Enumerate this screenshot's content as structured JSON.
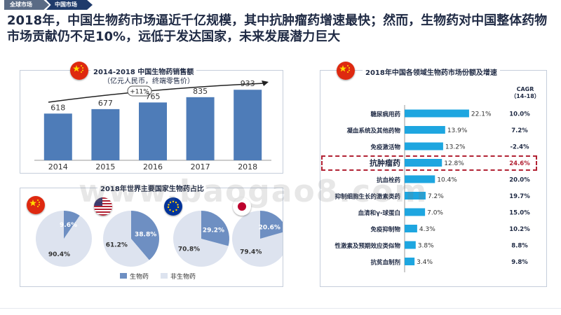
{
  "tabs": [
    "全球市场",
    "中国市场"
  ],
  "headline": "2018年，中国生物药市场逼近千亿规模，其中抗肿瘤药增速最快；然而，生物药对中国整体药物市场贡献仍不足10%，远低于发达国家，未来发展潜力巨大",
  "colors": {
    "bar": "#4e7cb8",
    "bio": "#6e8fc2",
    "nonbio": "#dde3ef",
    "hbar": "#1ea6e0",
    "accent": "#b22234"
  },
  "icons": [
    "china-flag-icon",
    "usa-flag-icon",
    "eu-flag-icon",
    "japan-flag-icon"
  ],
  "chart_data": [
    {
      "type": "bar",
      "title": "2014-2018 中国生物药销售额",
      "subtitle": "（亿元人民币，终端零售价）",
      "categories": [
        "2014",
        "2015",
        "2016",
        "2017",
        "2018"
      ],
      "values": [
        618,
        677,
        765,
        835,
        933
      ],
      "annotation": "+11%",
      "ylim": [
        0,
        1000
      ]
    },
    {
      "type": "pie",
      "title": "2018年世界主要国家生物药占比",
      "legend": [
        "生物药",
        "非生物药"
      ],
      "pies": [
        {
          "bio": 9.6,
          "nonbio": 90.4,
          "bio_label": "9.6%",
          "nonbio_label": "90.4%"
        },
        {
          "bio": 38.8,
          "nonbio": 61.2,
          "bio_label": "38.8%",
          "nonbio_label": "61.2%"
        },
        {
          "bio": 29.2,
          "nonbio": 70.8,
          "bio_label": "29.2%",
          "nonbio_label": "70.8%"
        },
        {
          "bio": 20.6,
          "nonbio": 79.4,
          "bio_label": "20.6%",
          "nonbio_label": "79.4%"
        }
      ]
    },
    {
      "type": "bar",
      "orientation": "horizontal",
      "title": "2018年中国各领域生物药市场份额及增速",
      "cagr_header": "CAGR（14-18）",
      "categories": [
        "糖尿病用药",
        "凝血系统及其他药物",
        "免疫激活物",
        "抗肿瘤药",
        "抗血栓药",
        "抑制细胞生长的激素类药",
        "血清和γ-球蛋白",
        "免疫抑制物",
        "性激素及预期效应类似物",
        "抗贫血制剂"
      ],
      "values": [
        22.1,
        13.9,
        13.2,
        12.8,
        10.4,
        7.2,
        7.0,
        4.3,
        3.8,
        3.4
      ],
      "value_labels": [
        "22.1%",
        "13.9%",
        "13.2%",
        "12.8%",
        "10.4%",
        "7.2%",
        "7.0%",
        "4.3%",
        "3.8%",
        "3.4%"
      ],
      "cagr": [
        "10.0%",
        "7.2%",
        "-2.4%",
        "24.6%",
        "20.0%",
        "19.7%",
        "15.0%",
        "10.2%",
        "8.8%",
        "9.8%"
      ],
      "highlight_index": 3,
      "xlim": [
        0,
        25
      ]
    }
  ],
  "watermark": "www.baogao8.com"
}
